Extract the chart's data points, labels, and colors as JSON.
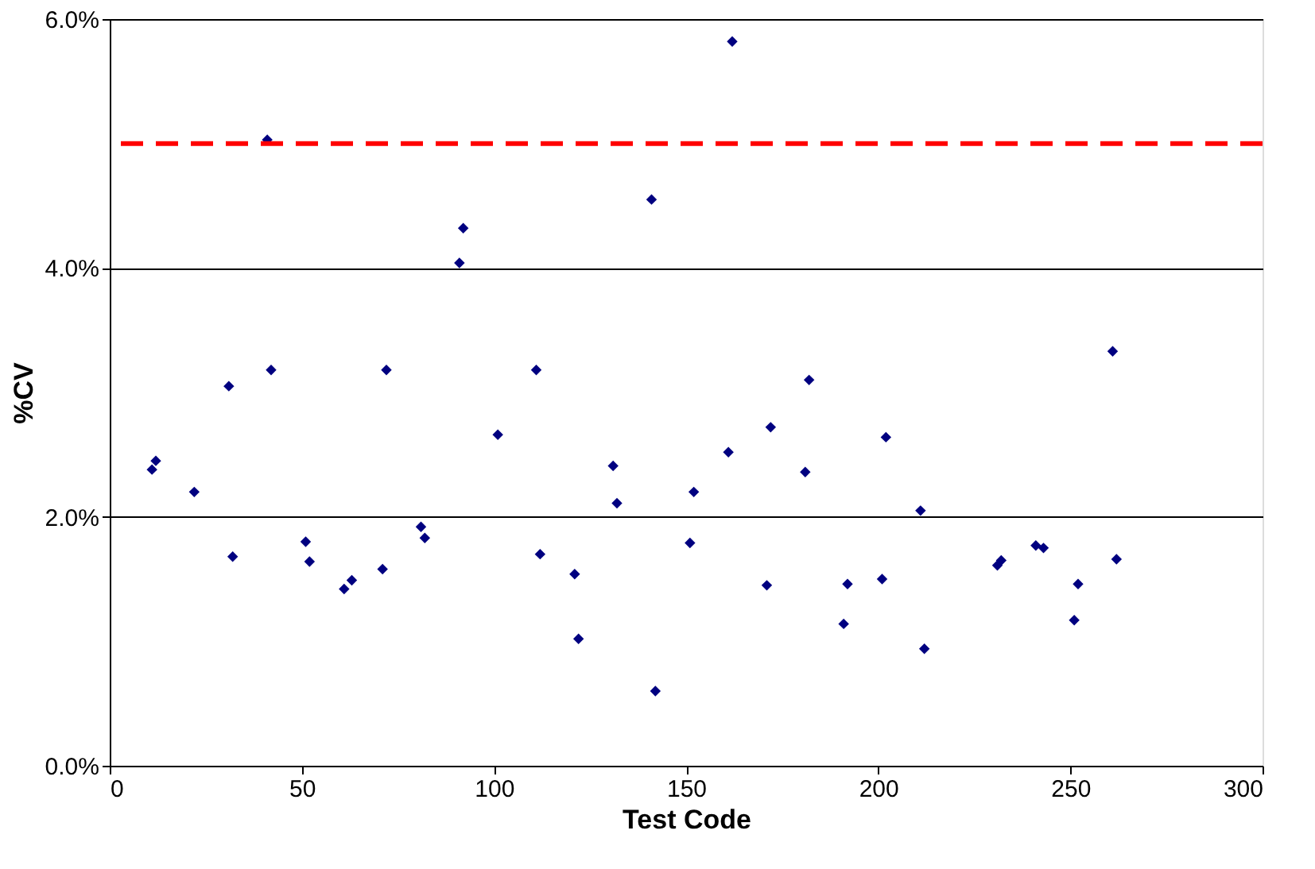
{
  "chart_data": {
    "type": "scatter",
    "xlabel": "Test Code",
    "ylabel": "%CV",
    "x": [
      11,
      12,
      22,
      31,
      32,
      41,
      42,
      51,
      52,
      61,
      63,
      71,
      72,
      81,
      82,
      91,
      92,
      101,
      111,
      112,
      121,
      122,
      131,
      132,
      141,
      142,
      151,
      152,
      161,
      162,
      171,
      172,
      181,
      182,
      191,
      192,
      201,
      202,
      211,
      212,
      231,
      232,
      241,
      243,
      251,
      252,
      261,
      262
    ],
    "series": [
      {
        "color": "#000080",
        "values": [
          2.38,
          2.45,
          2.2,
          3.05,
          1.68,
          5.03,
          3.18,
          1.8,
          1.64,
          1.42,
          1.49,
          1.58,
          3.18,
          1.92,
          1.83,
          4.04,
          4.32,
          2.66,
          3.18,
          1.7,
          1.54,
          1.02,
          2.41,
          2.11,
          4.55,
          0.6,
          1.79,
          2.2,
          2.52,
          5.82,
          1.45,
          2.72,
          2.36,
          3.1,
          1.14,
          1.46,
          1.5,
          2.64,
          2.05,
          0.94,
          1.61,
          1.65,
          1.77,
          1.75,
          1.17,
          1.46,
          3.33,
          1.66
        ]
      }
    ],
    "xlim": [
      0,
      300
    ],
    "xticks": [
      0,
      50,
      100,
      150,
      200,
      250,
      300
    ],
    "ylim": [
      0,
      6
    ],
    "yticks": [
      {
        "value": 0,
        "label": "0.0%"
      },
      {
        "value": 2,
        "label": "2.0%"
      },
      {
        "value": 4,
        "label": "4.0%"
      },
      {
        "value": 6,
        "label": "6.0%"
      }
    ],
    "ref_lines": [
      {
        "axis": "y",
        "value": 5.0,
        "color": "#ff0000",
        "line_style": "dashed"
      }
    ],
    "grid": "y",
    "marker": "diamond",
    "legend": false
  }
}
